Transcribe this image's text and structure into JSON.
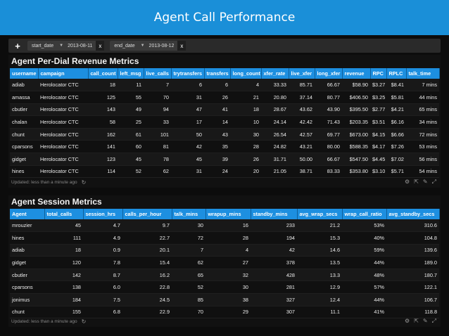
{
  "header": {
    "title": "Agent Call Performance"
  },
  "filters": {
    "add_label": "+",
    "chips": [
      {
        "label": "start_date",
        "value": "2013-08-11",
        "close": "x"
      },
      {
        "label": "end_date",
        "value": "2013-08-12",
        "close": "x"
      }
    ]
  },
  "revenue": {
    "title": "Agent Per-Dial Revenue Metrics",
    "columns": [
      "username",
      "campaign",
      "call_count",
      "left_msg",
      "live_calls",
      "trytransfers",
      "transfers",
      "long_count",
      "xfer_rate",
      "live_xfer",
      "long_xfer",
      "revenue",
      "RPC",
      "RPLC",
      "talk_time"
    ],
    "rows": [
      [
        "adiab",
        "Herolocator CTC",
        "18",
        "11",
        "7",
        "6",
        "6",
        "4",
        "33.33",
        "85.71",
        "66.67",
        "$58.90",
        "$3.27",
        "$8.41",
        "7 mins"
      ],
      [
        "amassa",
        "Herolocator CTC",
        "125",
        "55",
        "70",
        "31",
        "26",
        "21",
        "20.80",
        "37.14",
        "80.77",
        "$406.50",
        "$3.25",
        "$5.81",
        "44 mins"
      ],
      [
        "cbutler",
        "Herolocator CTC",
        "143",
        "49",
        "94",
        "47",
        "41",
        "18",
        "28.67",
        "43.62",
        "43.90",
        "$395.50",
        "$2.77",
        "$4.21",
        "65 mins"
      ],
      [
        "chalan",
        "Herolocator CTC",
        "58",
        "25",
        "33",
        "17",
        "14",
        "10",
        "24.14",
        "42.42",
        "71.43",
        "$203.35",
        "$3.51",
        "$6.16",
        "34 mins"
      ],
      [
        "chunt",
        "Herolocator CTC",
        "162",
        "61",
        "101",
        "50",
        "43",
        "30",
        "26.54",
        "42.57",
        "69.77",
        "$673.00",
        "$4.15",
        "$6.66",
        "72 mins"
      ],
      [
        "cparsons",
        "Herolocator CTC",
        "141",
        "60",
        "81",
        "42",
        "35",
        "28",
        "24.82",
        "43.21",
        "80.00",
        "$588.35",
        "$4.17",
        "$7.26",
        "53 mins"
      ],
      [
        "gidget",
        "Herolocator CTC",
        "123",
        "45",
        "78",
        "45",
        "39",
        "26",
        "31.71",
        "50.00",
        "66.67",
        "$547.50",
        "$4.45",
        "$7.02",
        "56 mins"
      ],
      [
        "hines",
        "Herolocator CTC",
        "114",
        "52",
        "62",
        "31",
        "24",
        "20",
        "21.05",
        "38.71",
        "83.33",
        "$353.80",
        "$3.10",
        "$5.71",
        "54 mins"
      ]
    ],
    "footer": "Updated: less than a minute ago"
  },
  "session": {
    "title": "Agent Session Metrics",
    "columns": [
      "Agent",
      "total_calls",
      "session_hrs",
      "calls_per_hour",
      "talk_mins",
      "wrapup_mins",
      "standby_mins",
      "avg_wrap_secs",
      "wrap_call_ratio",
      "avg_standby_secs"
    ],
    "rows": [
      [
        "mrouzier",
        "45",
        "4.7",
        "9.7",
        "30",
        "16",
        "233",
        "21.2",
        "53%",
        "310.6"
      ],
      [
        "hines",
        "111",
        "4.9",
        "22.7",
        "72",
        "28",
        "194",
        "15.3",
        "40%",
        "104.8"
      ],
      [
        "adiab",
        "18",
        "0.9",
        "20.1",
        "7",
        "4",
        "42",
        "14.6",
        "59%",
        "139.6"
      ],
      [
        "gidget",
        "120",
        "7.8",
        "15.4",
        "62",
        "27",
        "378",
        "13.5",
        "44%",
        "189.0"
      ],
      [
        "cbutler",
        "142",
        "8.7",
        "16.2",
        "65",
        "32",
        "428",
        "13.3",
        "48%",
        "180.7"
      ],
      [
        "cparsons",
        "138",
        "6.0",
        "22.8",
        "52",
        "30",
        "281",
        "12.9",
        "57%",
        "122.1"
      ],
      [
        "jonimus",
        "184",
        "7.5",
        "24.5",
        "85",
        "38",
        "327",
        "12.4",
        "44%",
        "106.7"
      ],
      [
        "chunt",
        "155",
        "6.8",
        "22.9",
        "70",
        "29",
        "307",
        "11.1",
        "41%",
        "118.8"
      ]
    ],
    "footer": "Updated: less than a minute ago"
  }
}
